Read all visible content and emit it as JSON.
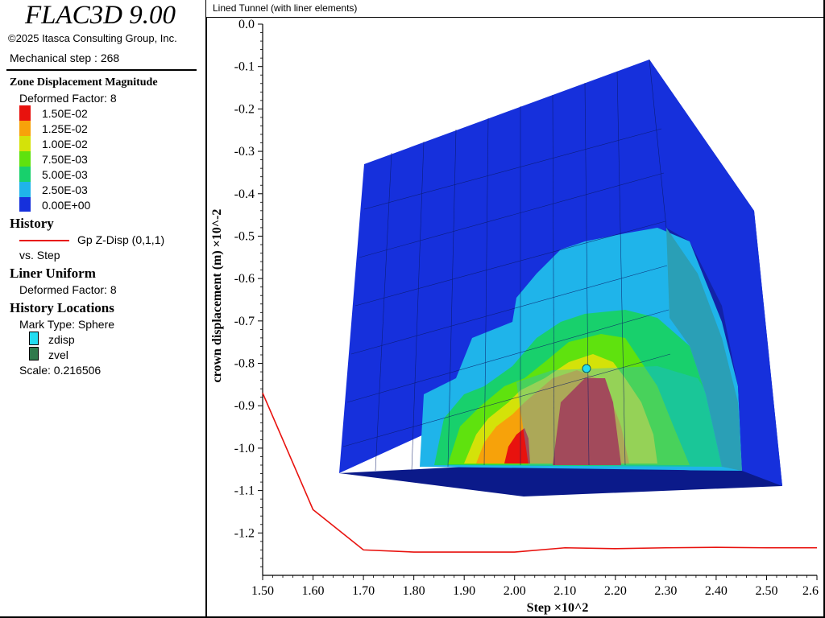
{
  "app": {
    "title": "FLAC3D 9.00",
    "copyright": "©2025 Itasca Consulting Group, Inc.",
    "step_label": "Mechanical step : 268"
  },
  "legend": {
    "contour": {
      "title": "Zone Displacement Magnitude",
      "deformed": "Deformed Factor: 8",
      "levels": [
        {
          "label": "1.50E-02",
          "color": "#e8120e"
        },
        {
          "label": "1.25E-02",
          "color": "#f7a20a"
        },
        {
          "label": "1.00E-02",
          "color": "#d4e209"
        },
        {
          "label": "7.50E-03",
          "color": "#5fe20e"
        },
        {
          "label": "5.00E-03",
          "color": "#18d06c"
        },
        {
          "label": "2.50E-03",
          "color": "#1fb4ea"
        },
        {
          "label": "0.00E+00",
          "color": "#1630dc"
        }
      ]
    },
    "history": {
      "title": "History",
      "series": "Gp Z-Disp (0,1,1)",
      "vs": "vs. Step",
      "line_color": "#e8120e"
    },
    "liner": {
      "title": "Liner Uniform",
      "deformed": "Deformed Factor: 8"
    },
    "history_locations": {
      "title": "History Locations",
      "mark_type": "Mark Type: Sphere",
      "items": [
        {
          "label": "zdisp",
          "color": "#23dcf0"
        },
        {
          "label": "zvel",
          "color": "#2f7a4c"
        }
      ],
      "scale": "Scale: 0.216506"
    }
  },
  "plot": {
    "title": "Lined Tunnel (with liner elements)"
  },
  "chart_data": {
    "type": "line",
    "title": "",
    "xlabel": "Step ×10^2",
    "ylabel": "crown displacement (m) ×10^-2",
    "xlim": [
      1.5,
      2.6
    ],
    "ylim": [
      -1.3,
      0.0
    ],
    "x_ticks": [
      "1.50",
      "1.60",
      "1.70",
      "1.80",
      "1.90",
      "2.00",
      "2.10",
      "2.20",
      "2.30",
      "2.40",
      "2.50",
      "2.6"
    ],
    "y_ticks": [
      "0.0",
      "-0.1",
      "-0.2",
      "-0.3",
      "-0.4",
      "-0.5",
      "-0.6",
      "-0.7",
      "-0.8",
      "-0.9",
      "-1.0",
      "-1.1",
      "-1.2"
    ],
    "series": [
      {
        "name": "Gp Z-Disp (0,1,1)",
        "x": [
          1.5,
          1.6,
          1.7,
          1.8,
          1.9,
          2.0,
          2.1,
          2.2,
          2.3,
          2.4,
          2.5,
          2.6
        ],
        "y": [
          -0.87,
          -1.145,
          -1.24,
          -1.245,
          -1.245,
          -1.245,
          -1.235,
          -1.237,
          -1.235,
          -1.234,
          -1.235,
          -1.235
        ]
      }
    ]
  }
}
